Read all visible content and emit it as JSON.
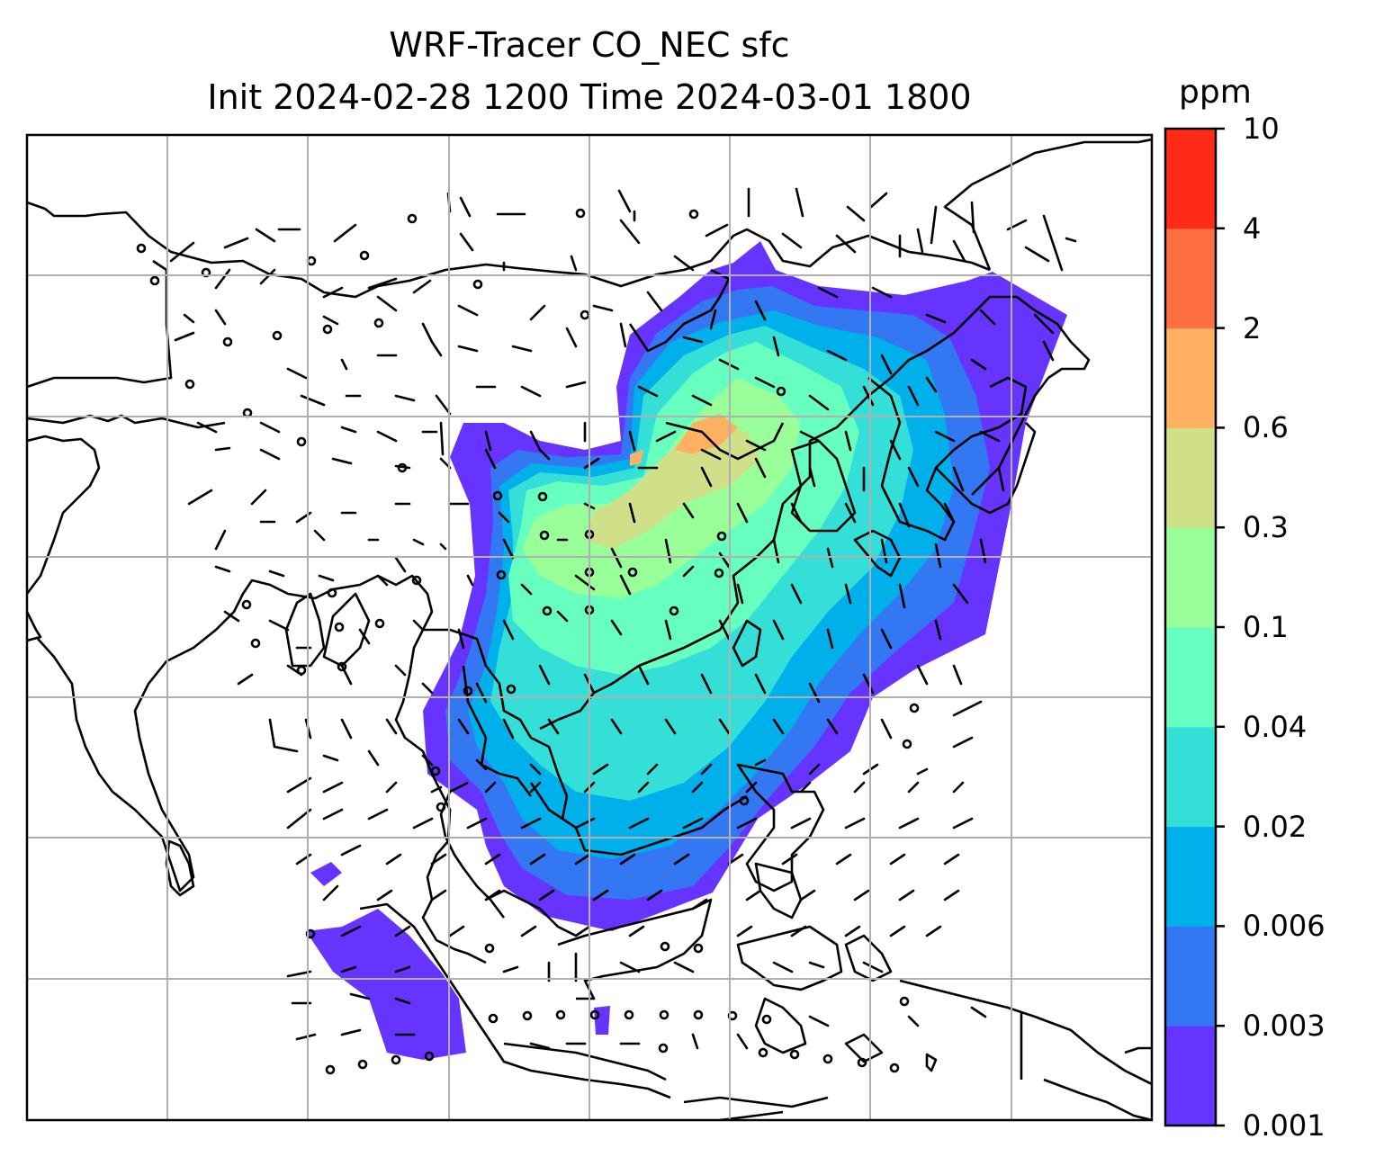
{
  "title": {
    "line1": "WRF-Tracer CO_NEC sfc",
    "line2": "Init 2024-02-28 1200 Time 2024-03-01 1800"
  },
  "colorbar": {
    "unit": "ppm",
    "levels": [
      "0.001",
      "0.003",
      "0.006",
      "0.02",
      "0.04",
      "0.1",
      "0.3",
      "0.6",
      "2",
      "4",
      "10"
    ],
    "colors": [
      "#6633ff",
      "#3377f2",
      "#00b0ea",
      "#33dfd6",
      "#66ffc0",
      "#99ff99",
      "#cfe088",
      "#ffb060",
      "#ff7040",
      "#ff2a18"
    ]
  },
  "map": {
    "projection_grid": {
      "vertical_lines": 7,
      "horizontal_lines": 6
    },
    "plume_color_order": [
      "lowest",
      "low",
      "mid",
      "high",
      "peak"
    ]
  }
}
